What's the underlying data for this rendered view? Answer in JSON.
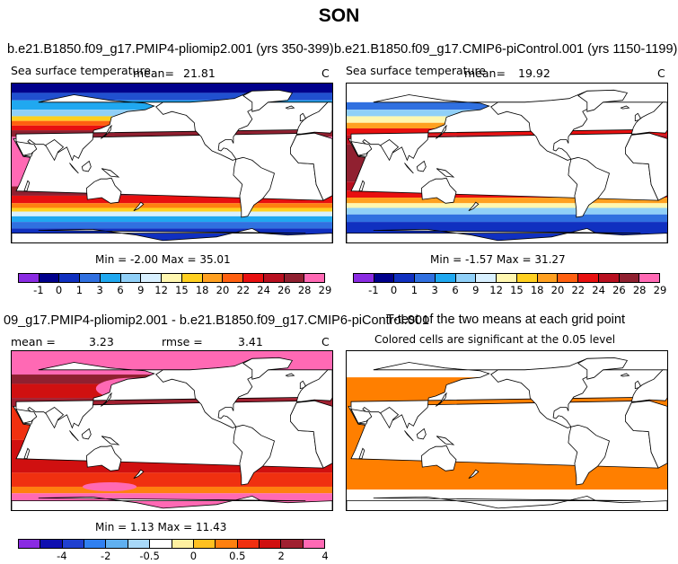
{
  "suptitle": "SON",
  "panels": [
    {
      "title": "b.e21.B1850.f09_g17.PMIP4-pliomip2.001 (yrs 350-399)",
      "variable": "Sea surface temperature",
      "mean_label": "mean=",
      "mean_value": "21.81",
      "units": "C",
      "minmax": "Min =   -2.00 Max =  35.01"
    },
    {
      "title": "b.e21.B1850.f09_g17.CMIP6-piControl.001 (yrs 1150-1199)",
      "variable": "Sea surface temperature",
      "mean_label": "mean=",
      "mean_value": "19.92",
      "units": "C",
      "minmax": "Min =   -1.57 Max =  31.27"
    },
    {
      "title": "09_g17.PMIP4-pliomip2.001 - b.e21.B1850.f09_g17.CMIP6-piControl.001",
      "mean_label": "mean =",
      "mean_value": "3.23",
      "rmse_label": "rmse =",
      "rmse_value": "3.41",
      "units": "C",
      "minmax": "Min =   1.13 Max =  11.43"
    },
    {
      "title": "T-test of the two means at each grid point",
      "subtitle": "Colored cells are significant at the 0.05 level"
    }
  ],
  "colorbar_sst": {
    "colors": [
      "#8a2be2",
      "#00008b",
      "#1030c0",
      "#3070e0",
      "#20a8f0",
      "#90d0f8",
      "#d8f0ff",
      "#fff7b0",
      "#ffd020",
      "#ffa020",
      "#ff6010",
      "#e81010",
      "#b81020",
      "#902030",
      "#ff69b4"
    ],
    "labels": [
      "-1",
      "0",
      "1",
      "3",
      "6",
      "9",
      "12",
      "15",
      "18",
      "20",
      "22",
      "24",
      "26",
      "28",
      "29"
    ]
  },
  "colorbar_diff": {
    "colors": [
      "#8a2be2",
      "#1010b0",
      "#2040d0",
      "#3080f0",
      "#60b0f0",
      "#a8d8f8",
      "#ffffff",
      "#fff0a0",
      "#ffc020",
      "#ff8010",
      "#f03010",
      "#d01010",
      "#a02030",
      "#ff69b4"
    ],
    "labels": [
      "-4",
      "-2",
      "-0.5",
      "0",
      "0.5",
      "2",
      "4"
    ]
  },
  "ttest_color": "#ff7f00"
}
